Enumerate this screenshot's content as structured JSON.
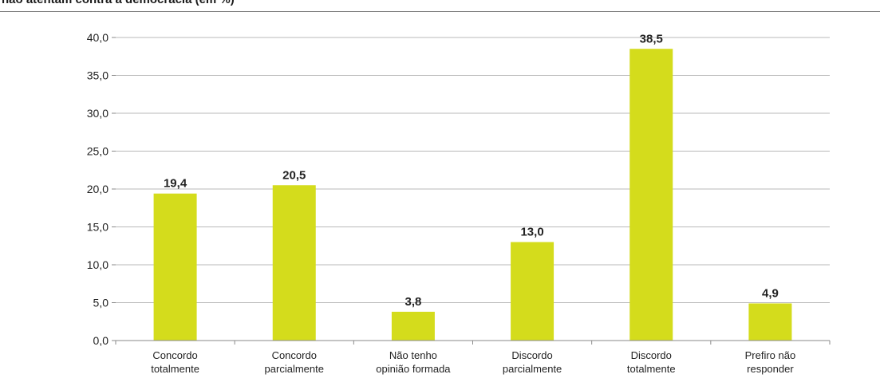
{
  "header": {
    "title": "não atentam contra a democracia (em %)"
  },
  "chart_data": {
    "type": "bar",
    "title": "não atentam contra a democracia (em %)",
    "xlabel": "",
    "ylabel": "",
    "ylim": [
      0,
      40
    ],
    "yticks": [
      "0,0",
      "5,0",
      "10,0",
      "15,0",
      "20,0",
      "25,0",
      "30,0",
      "35,0",
      "40,0"
    ],
    "grid": true,
    "legend": "none",
    "categories": [
      [
        "Concordo",
        "totalmente"
      ],
      [
        "Concordo",
        "parcialmente"
      ],
      [
        "Não tenho",
        "opinião formada"
      ],
      [
        "Discordo",
        "parcialmente"
      ],
      [
        "Discordo",
        "totalmente"
      ],
      [
        "Prefiro não",
        "responder"
      ]
    ],
    "values": [
      19.4,
      20.5,
      3.8,
      13.0,
      38.5,
      4.9
    ],
    "value_labels": [
      "19,4",
      "20,5",
      "3,8",
      "13,0",
      "38,5",
      "4,9"
    ],
    "colors": {
      "bar": "#d4dc1c",
      "grid": "#b9b9b9",
      "axis": "#8a8a8a",
      "text": "#222222"
    }
  }
}
